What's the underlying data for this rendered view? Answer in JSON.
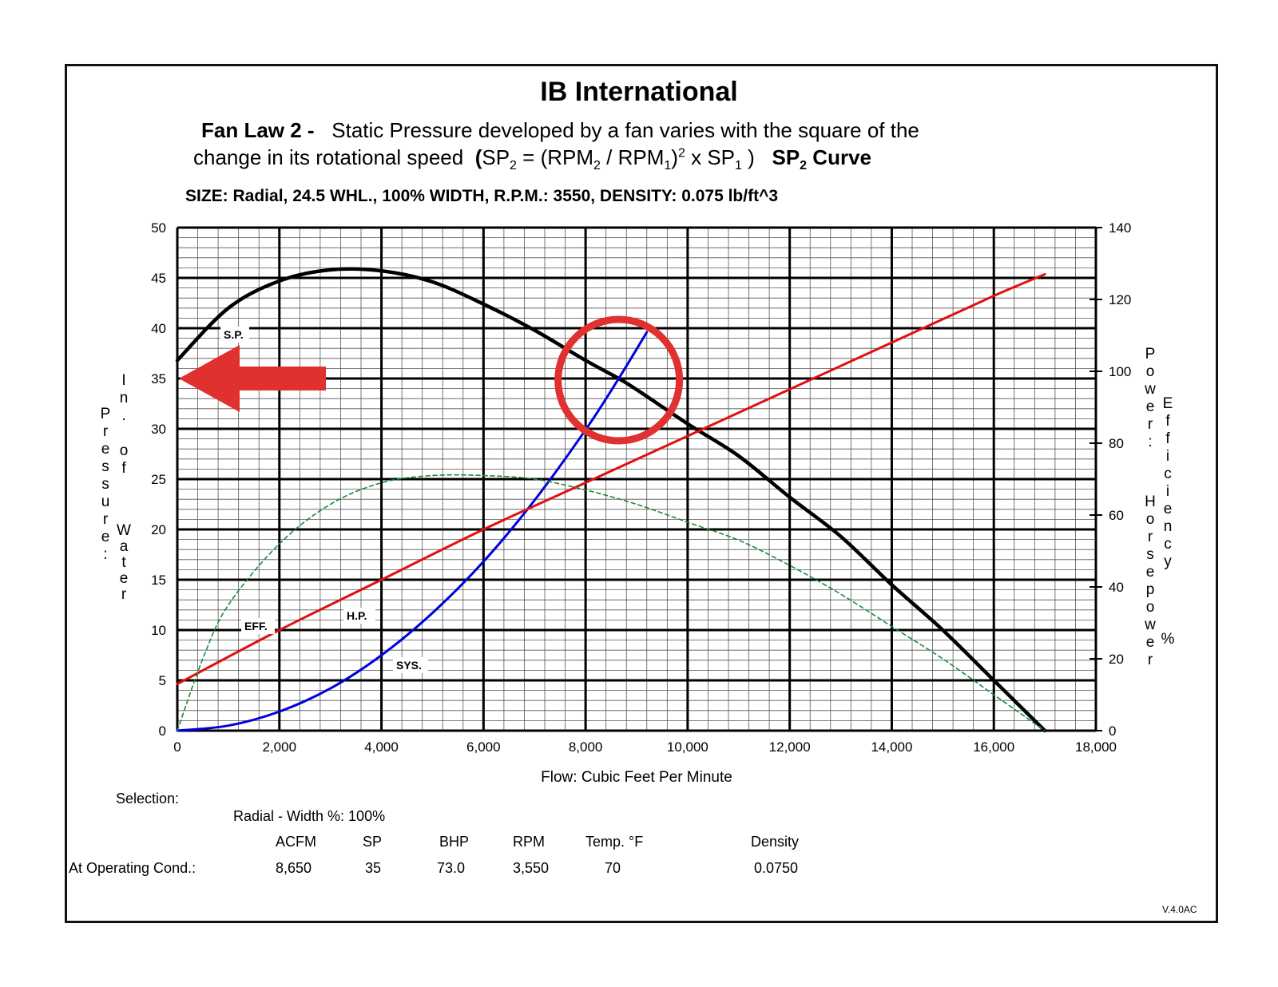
{
  "header": {
    "title": "IB International",
    "law_label": "Fan Law 2 -",
    "law_text1": "Static Pressure developed by a fan varies with the square of the",
    "law_text2": "change in its rotational speed",
    "formula": {
      "open": "(",
      "sp2": "SP",
      "sub2": "2",
      "eq": " = (RPM",
      "div": " / RPM",
      "sub1": "1",
      "sq": ")",
      "sup2": "2",
      "x_sp": " x SP",
      "close": " )"
    },
    "curve_label_sp": "SP",
    "curve_label_sub": "2",
    "curve_label_rest": " Curve",
    "size_line": "SIZE: Radial, 24.5 WHL., 100% WIDTH, R.P.M.: 3550,  DENSITY: 0.075 lb/ft^3"
  },
  "chart_data": {
    "type": "line",
    "xlabel": "Flow: Cubic Feet Per Minute",
    "ylabel_left": "Pressure: In. of Water",
    "ylabel_right": "Power: Horsepower  Efficiency %",
    "xlim": [
      0,
      18000
    ],
    "ylim_left": [
      0,
      50
    ],
    "ylim_right": [
      0,
      140
    ],
    "x_ticks": [
      "0",
      "2,000",
      "4,000",
      "6,000",
      "8,000",
      "10,000",
      "12,000",
      "14,000",
      "16,000",
      "18,000"
    ],
    "y_ticks_left": [
      "0",
      "5",
      "10",
      "15",
      "20",
      "25",
      "30",
      "35",
      "40",
      "45",
      "50"
    ],
    "y_ticks_right": [
      "0",
      "20",
      "40",
      "60",
      "80",
      "100",
      "120",
      "140"
    ],
    "grid": true,
    "series": [
      {
        "name": "S.P.",
        "axis": "left",
        "color": "#000000",
        "x": [
          0,
          1000,
          2000,
          3000,
          4000,
          5000,
          6000,
          7000,
          8000,
          8650,
          9000,
          10000,
          11000,
          12000,
          13000,
          14000,
          15000,
          16000,
          17000
        ],
        "y": [
          36.8,
          42.0,
          44.7,
          45.8,
          45.7,
          44.6,
          42.4,
          39.8,
          36.8,
          35.0,
          33.9,
          30.5,
          27.3,
          23.2,
          19.3,
          14.5,
          10.0,
          5.0,
          0
        ]
      },
      {
        "name": "SYS.",
        "axis": "left",
        "color": "#0000dd",
        "x": [
          0,
          1000,
          2000,
          3000,
          4000,
          5000,
          6000,
          7000,
          8000,
          8650,
          9200
        ],
        "y": [
          0,
          0.5,
          1.9,
          4.2,
          7.5,
          11.7,
          16.8,
          22.9,
          29.9,
          35.0,
          39.6
        ]
      },
      {
        "name": "H.P.",
        "axis": "right",
        "color": "#e01010",
        "x": [
          0,
          2000,
          4000,
          6000,
          8000,
          10000,
          12000,
          14000,
          16000,
          17000
        ],
        "y": [
          13,
          28,
          42,
          56,
          69,
          82,
          95,
          108,
          121,
          127
        ]
      },
      {
        "name": "EFF.",
        "axis": "right",
        "color": "#1a8a3a",
        "dashed": true,
        "x": [
          0,
          500,
          1000,
          2000,
          3000,
          4000,
          5000,
          6000,
          7000,
          8000,
          9000,
          10000,
          11000,
          12000,
          13000,
          14000,
          15000,
          16000,
          17000
        ],
        "y": [
          0,
          20,
          35,
          52,
          63,
          69,
          71,
          71,
          70,
          67,
          63,
          58,
          53,
          46,
          38,
          29,
          20,
          10,
          0
        ]
      }
    ],
    "annotations": [
      {
        "type": "arrow",
        "color": "#e03030",
        "points_to": "y=35",
        "side": "left"
      },
      {
        "type": "circle",
        "color": "#e03030",
        "around": "operating point",
        "x": 8650,
        "y": 35
      }
    ]
  },
  "selection": {
    "label": "Selection:",
    "desc": "Radial - Width %: 100%",
    "columns": [
      "ACFM",
      "SP",
      "BHP",
      "RPM",
      "Temp. °F",
      "Density"
    ],
    "row_label": "At Operating Cond.:",
    "values": [
      "8,650",
      "35",
      "73.0",
      "3,550",
      "70",
      "0.0750"
    ]
  },
  "version": "V.4.0AC"
}
